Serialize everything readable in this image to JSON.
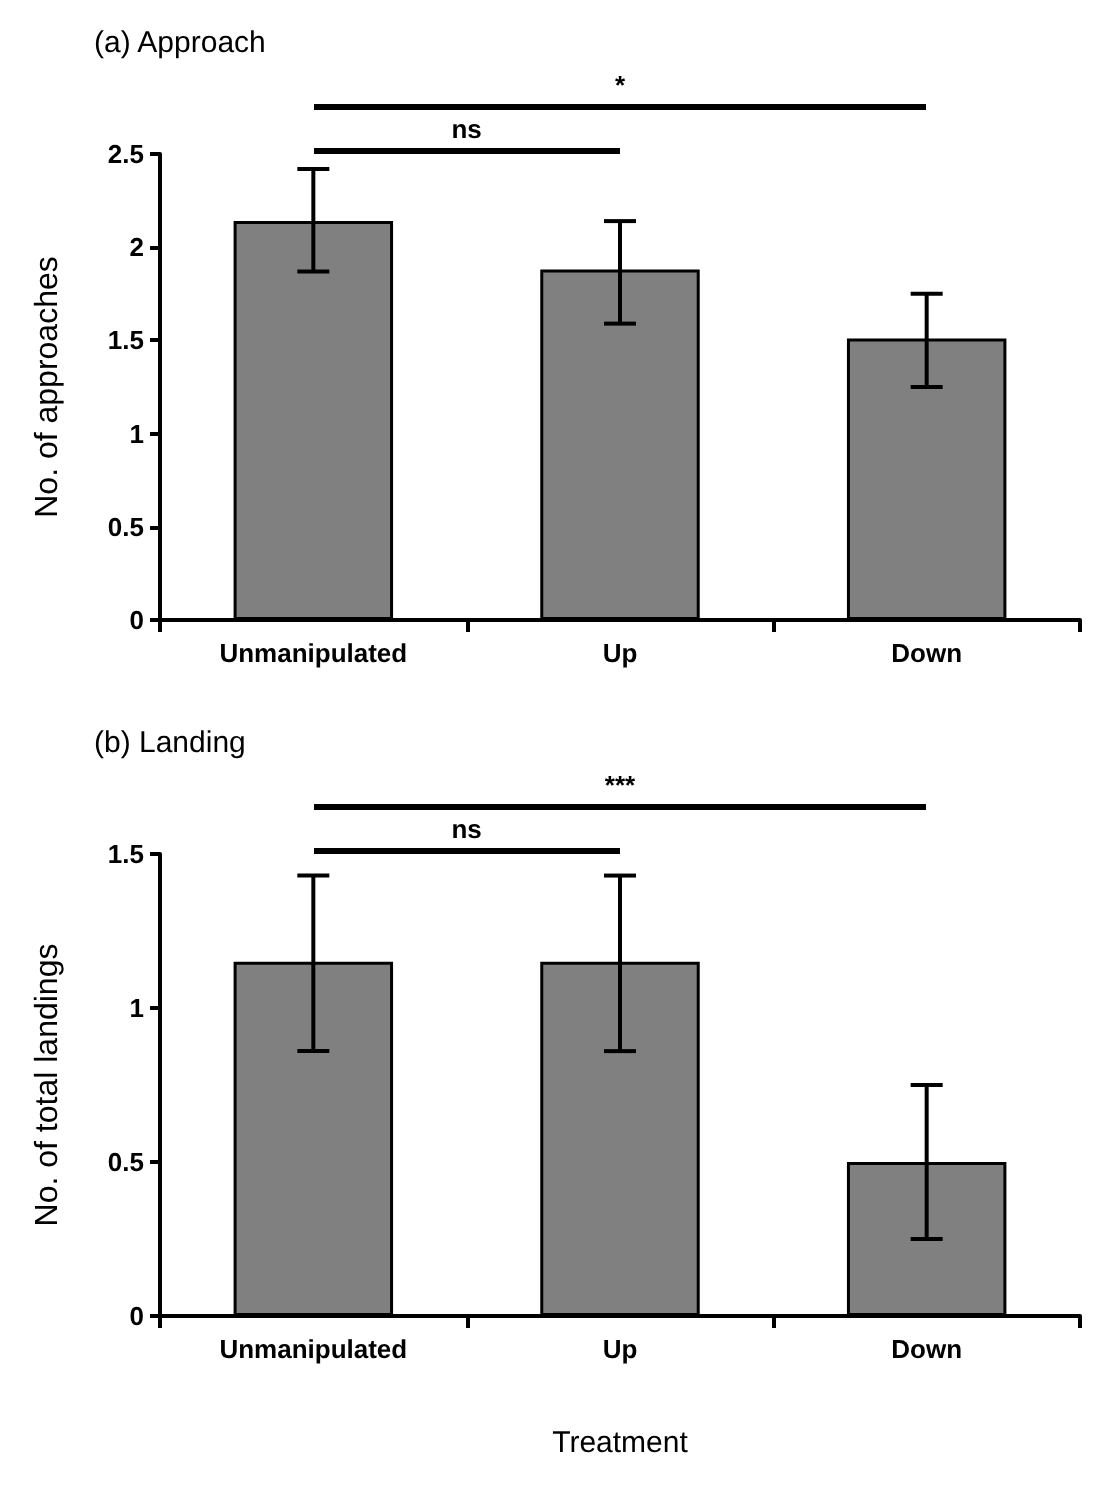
{
  "chart_data": [
    {
      "type": "bar",
      "title": "(a) Approach",
      "ylabel": "No. of approaches",
      "categories": [
        "Unmanipulated",
        "Up",
        "Down"
      ],
      "values": [
        2.14,
        1.88,
        1.51
      ],
      "color": "#808080",
      "errors": [
        [
          1.87,
          2.42
        ],
        [
          1.59,
          2.14
        ],
        [
          1.25,
          1.75
        ]
      ],
      "ylim": [
        0,
        2.5
      ],
      "yticks": [
        0,
        0.5,
        1,
        1.5,
        2,
        2.5
      ],
      "grid": false,
      "annotations": [
        "ns",
        "*"
      ]
    },
    {
      "type": "bar",
      "title": "(b) Landing",
      "ylabel": "No. of total landings",
      "xlabel": "Treatment",
      "categories": [
        "Unmanipulated",
        "Up",
        "Down"
      ],
      "values": [
        1.15,
        1.15,
        0.5
      ],
      "color": "#808080",
      "errors": [
        [
          0.86,
          1.43
        ],
        [
          0.86,
          1.43
        ],
        [
          0.25,
          0.75
        ]
      ],
      "ylim": [
        0,
        1.5
      ],
      "yticks": [
        0,
        0.5,
        1,
        1.5
      ],
      "grid": false,
      "annotations": [
        "ns",
        "***"
      ]
    }
  ]
}
